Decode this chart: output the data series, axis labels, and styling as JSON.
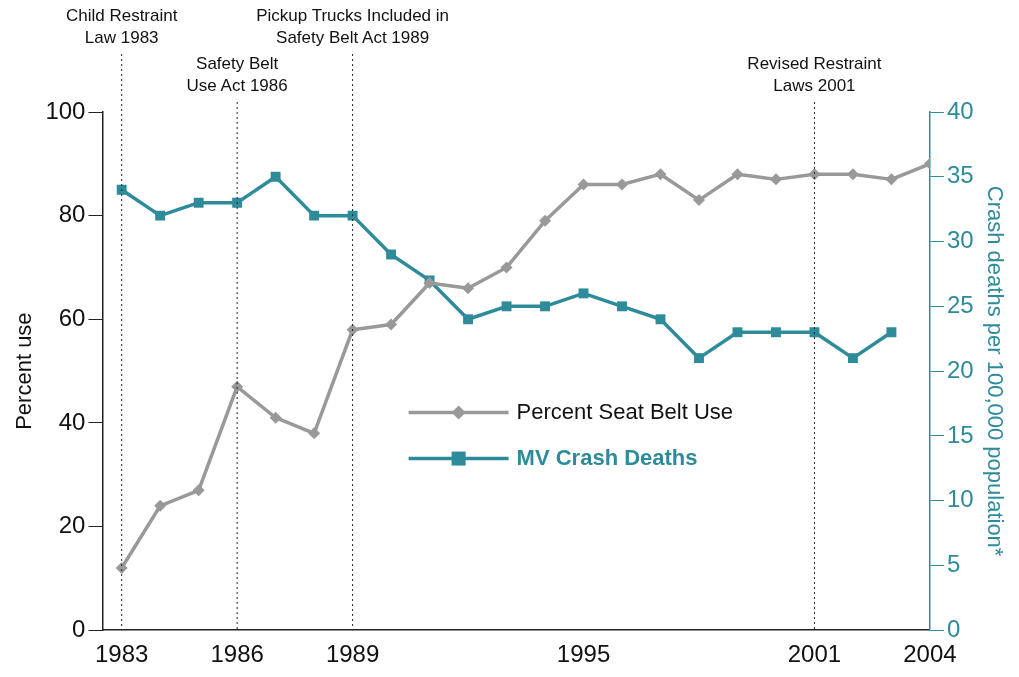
{
  "chart_data": {
    "type": "line",
    "x": [
      1983,
      1984,
      1985,
      1986,
      1987,
      1988,
      1989,
      1990,
      1991,
      1992,
      1993,
      1994,
      1995,
      1996,
      1997,
      1998,
      1999,
      2000,
      2001,
      2002,
      2003,
      2004
    ],
    "series": [
      {
        "name": "Percent Seat Belt Use",
        "color": "#999999",
        "marker": "diamond",
        "values": [
          12,
          24,
          27,
          47,
          41,
          38,
          58,
          59,
          67,
          66,
          70,
          79,
          86,
          86,
          88,
          83,
          88,
          87,
          88,
          88,
          87,
          90
        ]
      },
      {
        "name": "MV Crash Deaths",
        "color": "#2e8b99",
        "marker": "square",
        "axis": "y2",
        "values": [
          34,
          32,
          33,
          33,
          35,
          32,
          32,
          29,
          27,
          24,
          25,
          25,
          26,
          25,
          24,
          21,
          23,
          23,
          23,
          21,
          23,
          null
        ]
      }
    ],
    "xlim": [
      1982.5,
      2004
    ],
    "xticks": [
      1983,
      1986,
      1989,
      1995,
      2001,
      2004
    ],
    "ylim": [
      0,
      100
    ],
    "yticks": [
      0,
      20,
      40,
      60,
      80,
      100
    ],
    "y2lim": [
      0,
      40
    ],
    "y2ticks": [
      0,
      5,
      10,
      15,
      20,
      25,
      30,
      35,
      40
    ],
    "ylabel": "Percent use",
    "y2label": "Crash deaths per 100,000 population*",
    "ref_lines": [
      {
        "axis": "x",
        "value": 1983,
        "label": "Child Restraint\nLaw 1983",
        "line_style": "dotted"
      },
      {
        "axis": "x",
        "value": 1986,
        "label": "Safety Belt\nUse Act 1986",
        "line_style": "dotted"
      },
      {
        "axis": "x",
        "value": 1989,
        "label": "Pickup Trucks Included in\nSafety Belt Act 1989",
        "line_style": "dotted"
      },
      {
        "axis": "x",
        "value": 2001,
        "label": "Revised Restraint\nLaws 2001",
        "line_style": "dotted"
      }
    ],
    "legend": "center",
    "grid": false
  }
}
